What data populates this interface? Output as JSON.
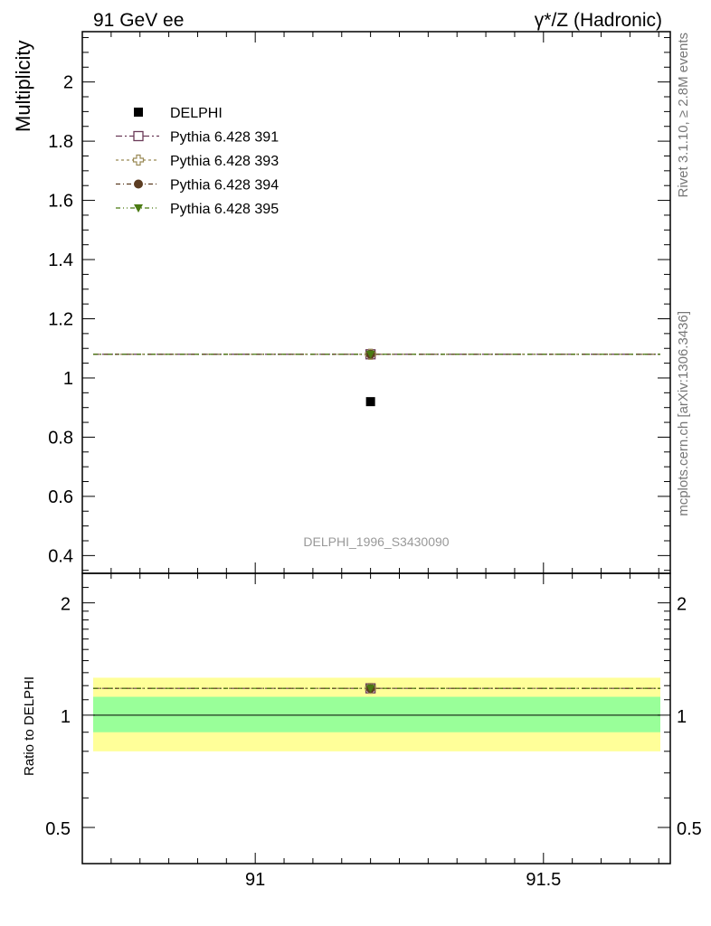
{
  "header": {
    "left_label": "91 GeV ee",
    "right_label": "γ*/Z (Hadronic)"
  },
  "side": {
    "rivet_label": "Rivet 3.1.10, ≥ 2.8M events",
    "mcplots_label": "mcplots.cern.ch [arXiv:1306.3436]"
  },
  "chart_data": [
    {
      "panel": "main",
      "type": "scatter",
      "ylabel": "Multiplicity",
      "xlabel": "",
      "analysis_label": "DELPHI_1996_S3430090",
      "xlim": [
        90.7,
        91.72
      ],
      "ylim": [
        0.34,
        2.17
      ],
      "yticks": [
        0.4,
        0.6,
        0.8,
        1,
        1.2,
        1.4,
        1.6,
        1.8,
        2
      ],
      "ytick_labels": [
        "0.4",
        "0.6",
        "0.8",
        "1",
        "1.2",
        "1.4",
        "1.6",
        "1.8",
        "2"
      ],
      "legend_position": "top-left",
      "series": [
        {
          "name": "DELPHI",
          "kind": "data",
          "marker": "square-filled",
          "color": "#000000",
          "x": [
            91.2
          ],
          "y": [
            0.92
          ]
        },
        {
          "name": "Pythia 6.428 391",
          "kind": "mc",
          "marker": "square-open",
          "color": "#6b3a58",
          "dash": "7,3,2,3",
          "x": [
            91.2
          ],
          "y": [
            1.08
          ],
          "x_range": [
            90.7,
            91.72
          ]
        },
        {
          "name": "Pythia 6.428 393",
          "kind": "mc",
          "marker": "cross-open",
          "color": "#9a8a56",
          "dash": "3,3",
          "x": [
            91.2
          ],
          "y": [
            1.08
          ],
          "x_range": [
            90.7,
            91.72
          ]
        },
        {
          "name": "Pythia 6.428 394",
          "kind": "mc",
          "marker": "circle-filled",
          "color": "#5c3d22",
          "dash": "5,3,1,3",
          "x": [
            91.2
          ],
          "y": [
            1.08
          ],
          "x_range": [
            90.7,
            91.72
          ]
        },
        {
          "name": "Pythia 6.428 395",
          "kind": "mc",
          "marker": "triangle-down-filled",
          "color": "#4a7a12",
          "dash": "5,3,1,3,1,3",
          "x": [
            91.2
          ],
          "y": [
            1.08
          ],
          "x_range": [
            90.7,
            91.72
          ]
        }
      ]
    },
    {
      "panel": "ratio",
      "type": "line",
      "ylabel": "Ratio to DELPHI",
      "xlabel": "",
      "xlim": [
        90.7,
        91.72
      ],
      "ylim": [
        0.4,
        2.4
      ],
      "log_y": true,
      "xticks": [
        91,
        91.5
      ],
      "xtick_labels": [
        "91",
        "91.5"
      ],
      "yticks": [
        0.5,
        1,
        2
      ],
      "ytick_labels": [
        "0.5",
        "1",
        "2"
      ],
      "bands": [
        {
          "label": "total uncertainty",
          "color": "#ffff99",
          "low": 0.8,
          "high": 1.26
        },
        {
          "label": "stat uncertainty",
          "color": "#99ff99",
          "low": 0.9,
          "high": 1.12
        }
      ],
      "reference": 1.0,
      "mc_ratio": {
        "x": 91.2,
        "y": 1.18,
        "x_range": [
          90.7,
          91.72
        ]
      }
    }
  ]
}
